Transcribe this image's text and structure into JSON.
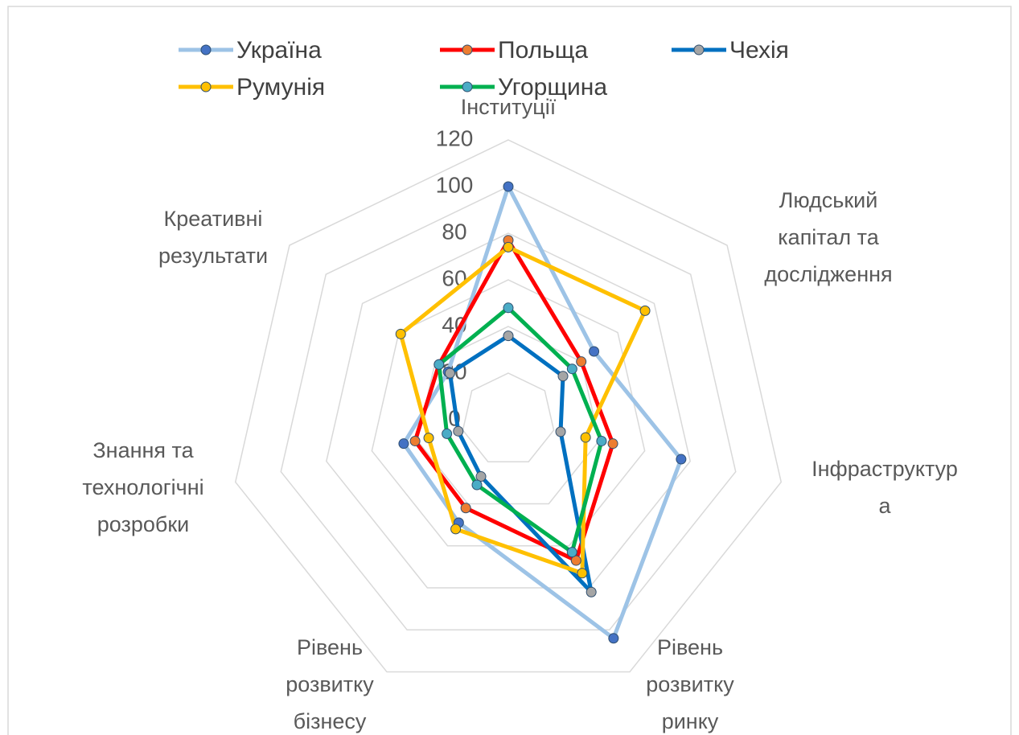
{
  "chart_data": {
    "type": "radar",
    "categories": [
      [
        "Інституції"
      ],
      [
        "Людський",
        "капітал та",
        "дослідження"
      ],
      [
        "Інфраструктур",
        "а"
      ],
      [
        "Рівень",
        "розвитку",
        "ринку"
      ],
      [
        "Рівень",
        "розвитку",
        "бізнесу"
      ],
      [
        "Знання та",
        "технологічні",
        "розробки"
      ],
      [
        "Креативні",
        "результати"
      ]
    ],
    "series": [
      {
        "name": "Україна",
        "color": "#9dc3e6",
        "marker_color": "#4472c4",
        "values": [
          100,
          47,
          76,
          104,
          49,
          46,
          33
        ]
      },
      {
        "name": "Польща",
        "color": "#ff0000",
        "marker_color": "#ed7d31",
        "values": [
          77,
          40,
          46,
          67,
          42,
          41,
          38
        ]
      },
      {
        "name": "Чехія",
        "color": "#0070c0",
        "marker_color": "#a5a5a5",
        "values": [
          36,
          30,
          23,
          82,
          27,
          22,
          32
        ]
      },
      {
        "name": "Румунія",
        "color": "#ffc000",
        "marker_color": "#ffc000",
        "values": [
          74,
          75,
          34,
          73,
          52,
          35,
          59
        ]
      },
      {
        "name": "Угорщина",
        "color": "#00b050",
        "marker_color": "#4bacc6",
        "values": [
          48,
          35,
          41,
          63,
          31,
          27,
          38
        ]
      }
    ],
    "ylim": [
      0,
      120
    ],
    "yticks": [
      0,
      20,
      40,
      60,
      80,
      100,
      120
    ],
    "grid": true,
    "legend": "top"
  }
}
